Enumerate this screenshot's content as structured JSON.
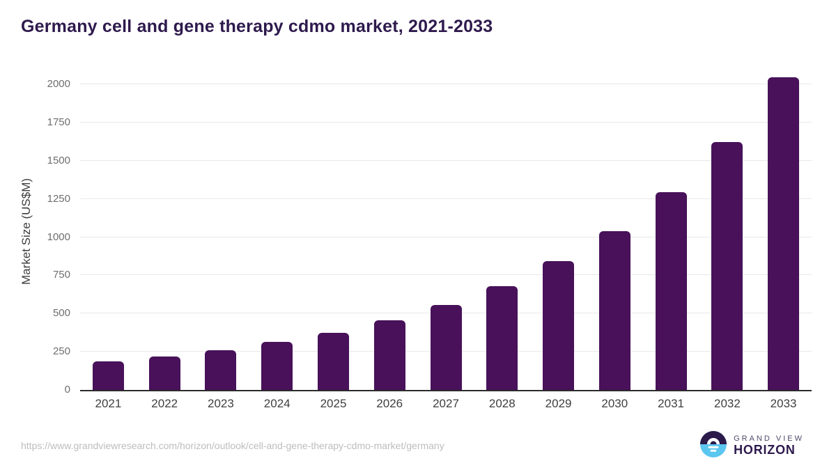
{
  "header": {
    "title": "Germany cell and gene therapy cdmo market, 2021-2033"
  },
  "chart_data": {
    "type": "bar",
    "title": "Germany cell and gene therapy cdmo market, 2021-2033",
    "categories": [
      "2021",
      "2022",
      "2023",
      "2024",
      "2025",
      "2026",
      "2027",
      "2028",
      "2029",
      "2030",
      "2031",
      "2032",
      "2033"
    ],
    "values": [
      185,
      220,
      260,
      313,
      376,
      455,
      558,
      680,
      841,
      1038,
      1292,
      1624,
      2045
    ],
    "xlabel": "",
    "ylabel": "Market Size (US$M)",
    "ylim": [
      0,
      2000
    ],
    "yticks": [
      0,
      250,
      500,
      750,
      1000,
      1250,
      1500,
      1750,
      2000
    ],
    "grid": "horizontal",
    "legend": "none",
    "bar_color": "#481159"
  },
  "footer": {
    "source_url": "https://www.grandviewresearch.com/horizon/outlook/cell-and-gene-therapy-cdmo-market/germany",
    "logo": {
      "line1": "GRAND VIEW",
      "line2": "HORIZON"
    }
  },
  "colors": {
    "bar": "#481159",
    "title": "#2e1a4d",
    "axis_line": "#2b2b2b",
    "gridline": "#e8e8e8",
    "y_tick_text": "#6e6e6e",
    "x_tick_text": "#3f3f3f",
    "url_text": "#bdbdbd",
    "logo_blue": "#5bc6ef",
    "logo_purple": "#2b1a4a"
  }
}
